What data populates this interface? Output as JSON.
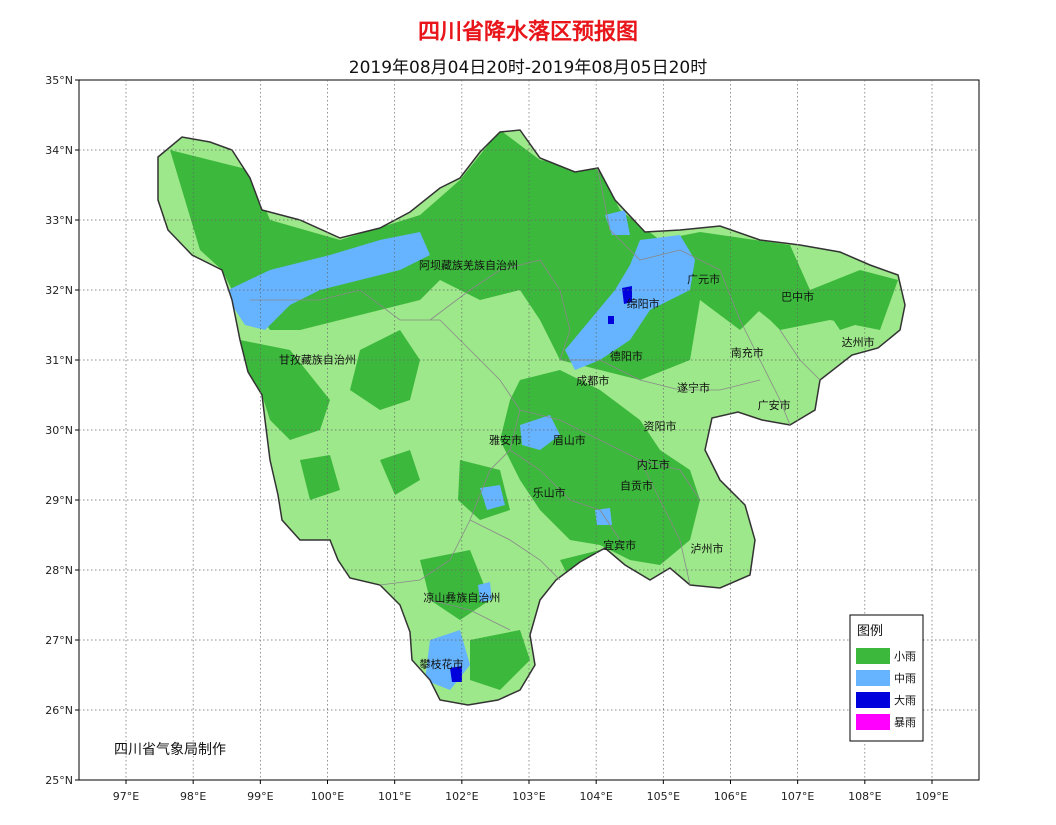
{
  "title": "四川省降水落区预报图",
  "subtitle": "2019年08月04日20时-2019年08月05日20时",
  "credit": "四川省气象局制作",
  "axes": {
    "lat_ticks": [
      "35°N",
      "34°N",
      "33°N",
      "32°N",
      "31°N",
      "30°N",
      "29°N",
      "28°N",
      "27°N",
      "26°N",
      "25°N"
    ],
    "lon_ticks": [
      "97°E",
      "98°E",
      "99°E",
      "100°E",
      "101°E",
      "102°E",
      "103°E",
      "104°E",
      "105°E",
      "106°E",
      "107°E",
      "108°E",
      "109°E"
    ],
    "lat_range": [
      25,
      35
    ],
    "lon_range": [
      96.3,
      109.7
    ]
  },
  "colors": {
    "light_rain": "#3cb83c",
    "moderate_rain": "#66b3ff",
    "heavy_rain": "#0000dd",
    "rainstorm": "#ff00ff",
    "base_fill": "#9de88a"
  },
  "legend": {
    "title": "图例",
    "items": [
      {
        "label": "小雨",
        "color": "#3cb83c"
      },
      {
        "label": "中雨",
        "color": "#66b3ff"
      },
      {
        "label": "大雨",
        "color": "#0000dd"
      },
      {
        "label": "暴雨",
        "color": "#ff00ff"
      }
    ]
  },
  "cities": [
    {
      "name": "阿坝藏族羌族自治州",
      "lon": 102.1,
      "lat": 32.3
    },
    {
      "name": "广元市",
      "lon": 105.6,
      "lat": 32.1
    },
    {
      "name": "巴中市",
      "lon": 107.0,
      "lat": 31.85
    },
    {
      "name": "绵阳市",
      "lon": 104.7,
      "lat": 31.75
    },
    {
      "name": "甘孜藏族自治州",
      "lon": 99.85,
      "lat": 30.95
    },
    {
      "name": "德阳市",
      "lon": 104.45,
      "lat": 31.0
    },
    {
      "name": "南充市",
      "lon": 106.25,
      "lat": 31.05
    },
    {
      "name": "达州市",
      "lon": 107.9,
      "lat": 31.2
    },
    {
      "name": "成都市",
      "lon": 103.95,
      "lat": 30.65
    },
    {
      "name": "遂宁市",
      "lon": 105.45,
      "lat": 30.55
    },
    {
      "name": "广安市",
      "lon": 106.65,
      "lat": 30.3
    },
    {
      "name": "资阳市",
      "lon": 104.95,
      "lat": 30.0
    },
    {
      "name": "雅安市",
      "lon": 102.65,
      "lat": 29.8
    },
    {
      "name": "眉山市",
      "lon": 103.6,
      "lat": 29.8
    },
    {
      "name": "内江市",
      "lon": 104.85,
      "lat": 29.45
    },
    {
      "name": "乐山市",
      "lon": 103.3,
      "lat": 29.05
    },
    {
      "name": "自贡市",
      "lon": 104.6,
      "lat": 29.15
    },
    {
      "name": "宜宾市",
      "lon": 104.35,
      "lat": 28.3
    },
    {
      "name": "泸州市",
      "lon": 105.65,
      "lat": 28.25
    },
    {
      "name": "凉山彝族自治州",
      "lon": 102.0,
      "lat": 27.55
    },
    {
      "name": "攀枝花市",
      "lon": 101.7,
      "lat": 26.6
    }
  ]
}
